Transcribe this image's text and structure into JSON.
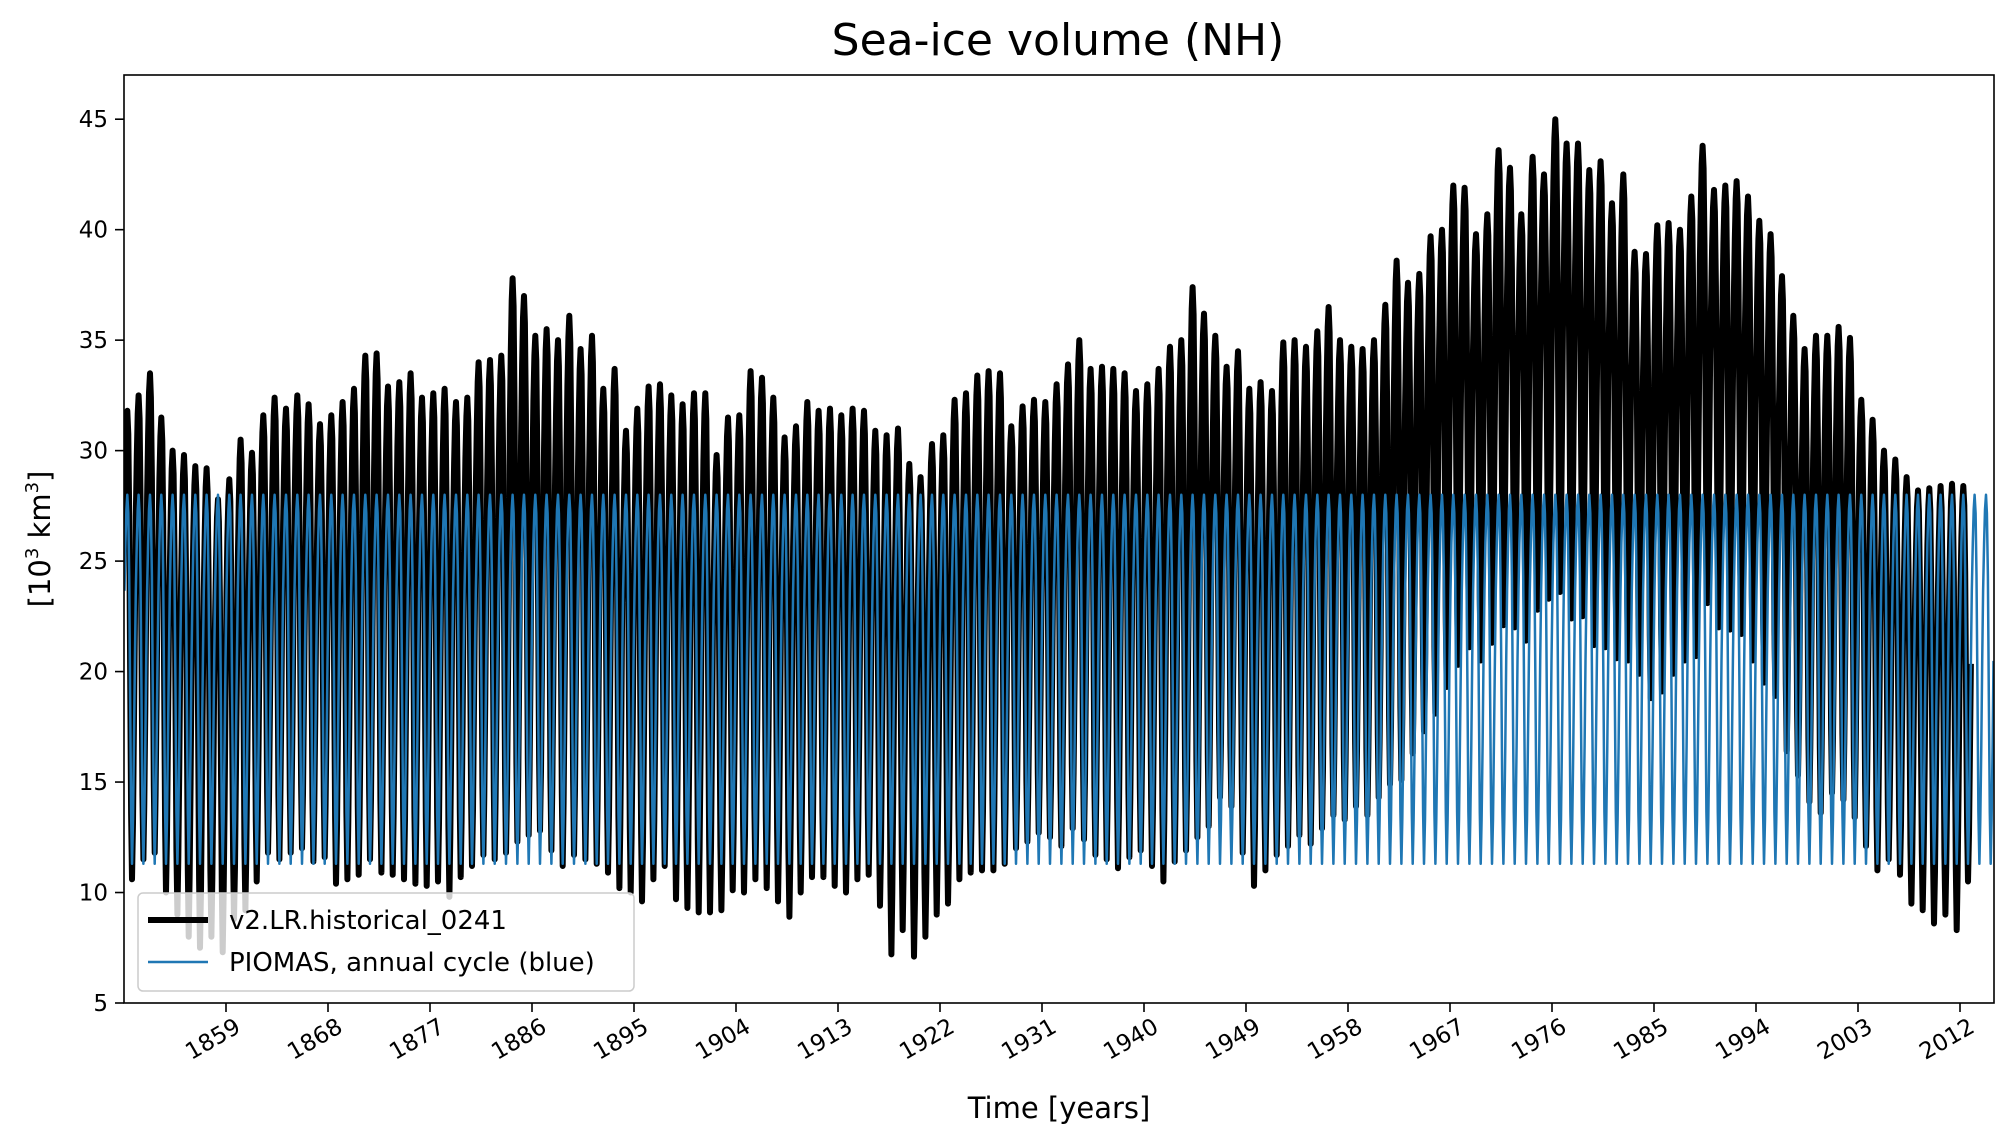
{
  "chart_data": {
    "type": "line",
    "title": "Sea-ice volume (NH)",
    "xlabel": "Time [years]",
    "ylabel": {
      "prefix": "[10",
      "sup1": "3",
      "mid": " km",
      "sup2": "3",
      "suffix": "]"
    },
    "xlim": [
      1850,
      2015
    ],
    "ylim": [
      5,
      47
    ],
    "xticks": [
      1859,
      1868,
      1877,
      1886,
      1895,
      1904,
      1913,
      1922,
      1931,
      1940,
      1949,
      1958,
      1967,
      1976,
      1985,
      1994,
      2003,
      2012
    ],
    "xtick_labels": [
      "1859",
      "1868",
      "1877",
      "1886",
      "1895",
      "1904",
      "1913",
      "1922",
      "1931",
      "1940",
      "1949",
      "1958",
      "1967",
      "1976",
      "1985",
      "1994",
      "2003",
      "2012"
    ],
    "yticks": [
      5,
      10,
      15,
      20,
      25,
      30,
      35,
      40,
      45
    ],
    "ytick_labels": [
      "5",
      "10",
      "15",
      "20",
      "25",
      "30",
      "35",
      "40",
      "45"
    ],
    "legend": {
      "placement": "lower-left",
      "entries": [
        "v2.LR.historical_0241",
        "PIOMAS, annual cycle (blue)"
      ]
    },
    "series": [
      {
        "name": "v2.LR.historical_0241",
        "color": "#000000",
        "sampling": "monthly, annual max in Apr, min in Sep",
        "years": [
          1850,
          1851,
          1852,
          1853,
          1854,
          1855,
          1856,
          1857,
          1858,
          1859,
          1860,
          1861,
          1862,
          1863,
          1864,
          1865,
          1866,
          1867,
          1868,
          1869,
          1870,
          1871,
          1872,
          1873,
          1874,
          1875,
          1876,
          1877,
          1878,
          1879,
          1880,
          1881,
          1882,
          1883,
          1884,
          1885,
          1886,
          1887,
          1888,
          1889,
          1890,
          1891,
          1892,
          1893,
          1894,
          1895,
          1896,
          1897,
          1898,
          1899,
          1900,
          1901,
          1902,
          1903,
          1904,
          1905,
          1906,
          1907,
          1908,
          1909,
          1910,
          1911,
          1912,
          1913,
          1914,
          1915,
          1916,
          1917,
          1918,
          1919,
          1920,
          1921,
          1922,
          1923,
          1924,
          1925,
          1926,
          1927,
          1928,
          1929,
          1930,
          1931,
          1932,
          1933,
          1934,
          1935,
          1936,
          1937,
          1938,
          1939,
          1940,
          1941,
          1942,
          1943,
          1944,
          1945,
          1946,
          1947,
          1948,
          1949,
          1950,
          1951,
          1952,
          1953,
          1954,
          1955,
          1956,
          1957,
          1958,
          1959,
          1960,
          1961,
          1962,
          1963,
          1964,
          1965,
          1966,
          1967,
          1968,
          1969,
          1970,
          1971,
          1972,
          1973,
          1974,
          1975,
          1976,
          1977,
          1978,
          1979,
          1980,
          1981,
          1982,
          1983,
          1984,
          1985,
          1986,
          1987,
          1988,
          1989,
          1990,
          1991,
          1992,
          1993,
          1994,
          1995,
          1996,
          1997,
          1998,
          1999,
          2000,
          2001,
          2002,
          2003,
          2004,
          2005,
          2006,
          2007,
          2008,
          2009,
          2010,
          2011,
          2012,
          2013,
          2014
        ],
        "annual_max": [
          31.8,
          32.5,
          33.5,
          31.5,
          30.0,
          29.8,
          29.3,
          29.2,
          27.8,
          28.7,
          30.5,
          29.9,
          31.6,
          32.4,
          31.9,
          32.5,
          32.1,
          31.2,
          31.6,
          32.2,
          32.8,
          34.3,
          34.4,
          32.9,
          33.1,
          33.5,
          32.4,
          32.6,
          32.8,
          32.2,
          32.4,
          34.0,
          34.1,
          34.3,
          37.8,
          37.0,
          35.2,
          35.5,
          35.0,
          36.1,
          34.6,
          35.2,
          32.8,
          33.7,
          30.9,
          31.9,
          32.9,
          33.0,
          32.5,
          32.1,
          32.6,
          32.6,
          29.8,
          31.5,
          31.6,
          33.6,
          33.3,
          32.4,
          30.6,
          31.1,
          32.2,
          31.8,
          31.9,
          31.6,
          31.9,
          31.8,
          30.9,
          30.7,
          31.0,
          29.4,
          28.8,
          30.3,
          30.7,
          32.3,
          32.6,
          33.4,
          33.6,
          33.5,
          31.1,
          32.0,
          32.3,
          32.2,
          33.0,
          33.9,
          35.0,
          33.7,
          33.8,
          33.7,
          33.5,
          32.7,
          33.0,
          33.7,
          34.7,
          35.0,
          37.4,
          36.2,
          35.2,
          33.8,
          34.5,
          32.8,
          33.1,
          32.7,
          34.9,
          35.0,
          34.7,
          35.4,
          36.5,
          35.0,
          34.7,
          34.6,
          35.0,
          36.6,
          38.6,
          37.6,
          38.0,
          39.7,
          40.0,
          42.0,
          41.9,
          39.8,
          40.7,
          43.6,
          42.8,
          40.7,
          43.3,
          42.5,
          45.0,
          43.9,
          43.9,
          42.7,
          43.1,
          41.2,
          42.5,
          39.0,
          38.9,
          40.2,
          40.3,
          40.0,
          41.5,
          43.8,
          41.8,
          42.0,
          42.2,
          41.5,
          40.4,
          39.8,
          37.9,
          36.1,
          34.6,
          35.2,
          35.2,
          35.6,
          35.1,
          32.3,
          31.4,
          30.0,
          29.6,
          28.8,
          28.2,
          28.3,
          28.4,
          28.5,
          28.4
        ],
        "annual_min": [
          10.6,
          11.5,
          11.8,
          10.0,
          9.0,
          8.0,
          7.5,
          8.0,
          7.3,
          8.8,
          9.2,
          10.5,
          11.8,
          11.5,
          11.8,
          12.0,
          11.4,
          11.6,
          10.4,
          10.6,
          10.8,
          11.5,
          10.9,
          10.8,
          10.6,
          10.4,
          10.3,
          10.5,
          9.8,
          10.7,
          11.2,
          11.7,
          11.5,
          11.8,
          12.3,
          12.6,
          12.8,
          11.9,
          11.2,
          11.7,
          11.5,
          11.3,
          10.9,
          10.2,
          10.0,
          9.6,
          10.6,
          11.2,
          9.7,
          9.3,
          9.1,
          9.1,
          9.2,
          10.1,
          10.0,
          10.6,
          10.2,
          9.6,
          8.9,
          10.0,
          10.7,
          10.7,
          10.3,
          10.0,
          10.6,
          10.8,
          9.4,
          7.2,
          8.3,
          7.1,
          8.0,
          9.0,
          9.5,
          10.6,
          10.9,
          11.0,
          11.0,
          11.3,
          12.0,
          12.3,
          12.7,
          12.5,
          12.1,
          12.9,
          12.4,
          11.7,
          11.5,
          11.1,
          11.6,
          11.9,
          11.2,
          10.5,
          11.4,
          11.9,
          12.5,
          13.0,
          14.3,
          13.9,
          11.8,
          10.3,
          11.0,
          11.7,
          12.1,
          12.6,
          12.2,
          12.9,
          13.5,
          13.3,
          13.9,
          13.5,
          14.3,
          14.9,
          15.1,
          16.3,
          17.3,
          18.1,
          19.3,
          20.3,
          21.1,
          20.5,
          21.3,
          22.1,
          22.0,
          21.4,
          22.8,
          23.3,
          23.6,
          22.4,
          22.5,
          21.2,
          21.1,
          20.6,
          20.5,
          19.9,
          18.8,
          19.1,
          19.9,
          20.5,
          20.7,
          23.1,
          22.0,
          21.9,
          21.7,
          20.5,
          19.5,
          18.9,
          16.4,
          15.3,
          14.1,
          13.6,
          14.5,
          14.2,
          13.4,
          12.1,
          11.0,
          11.5,
          10.8,
          9.5,
          9.2,
          8.6,
          9.0,
          8.3,
          10.5
        ]
      },
      {
        "name": "PIOMAS, annual cycle (blue)",
        "color": "#1f77b4",
        "sampling": "monthly climatology repeated every year",
        "annual_max": 28.0,
        "annual_min": 11.3
      }
    ]
  }
}
